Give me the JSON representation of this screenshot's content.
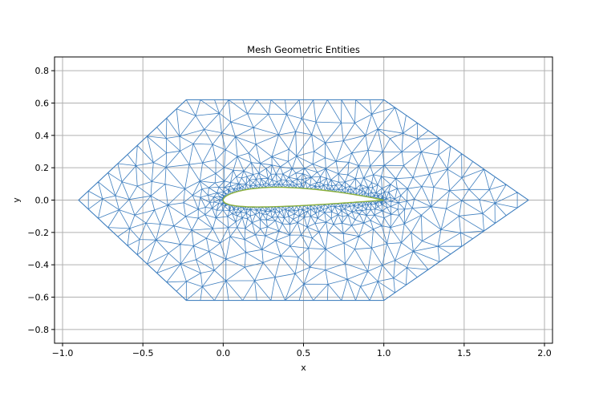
{
  "chart_data": {
    "type": "mesh",
    "title": "Mesh Geometric Entities",
    "xlabel": "x",
    "ylabel": "y",
    "xlim": [
      -1.05,
      2.05
    ],
    "ylim": [
      -0.885,
      0.885
    ],
    "grid": true,
    "x_ticks": [
      {
        "value": -1.0,
        "label": "−1.0"
      },
      {
        "value": -0.5,
        "label": "−0.5"
      },
      {
        "value": 0.0,
        "label": "0.0"
      },
      {
        "value": 0.5,
        "label": "0.5"
      },
      {
        "value": 1.0,
        "label": "1.0"
      },
      {
        "value": 1.5,
        "label": "1.5"
      },
      {
        "value": 2.0,
        "label": "2.0"
      }
    ],
    "y_ticks": [
      {
        "value": 0.8,
        "label": "0.8"
      },
      {
        "value": 0.6,
        "label": "0.6"
      },
      {
        "value": 0.4,
        "label": "0.4"
      },
      {
        "value": 0.2,
        "label": "0.2"
      },
      {
        "value": 0.0,
        "label": "0.0"
      },
      {
        "value": -0.2,
        "label": "−0.2"
      },
      {
        "value": -0.4,
        "label": "−0.4"
      },
      {
        "value": -0.6,
        "label": "−0.6"
      },
      {
        "value": -0.8,
        "label": "−0.8"
      }
    ],
    "outer_boundary": [
      [
        -0.9,
        0.0
      ],
      [
        -0.23,
        0.62
      ],
      [
        1.0,
        0.62
      ],
      [
        1.9,
        0.0
      ],
      [
        1.0,
        -0.62
      ],
      [
        -0.23,
        -0.62
      ]
    ],
    "airfoil": {
      "chord_start": [
        0.0,
        0.0
      ],
      "chord_end": [
        1.0,
        0.0
      ],
      "max_thickness": 0.12,
      "max_camber": 0.02
    },
    "colors": {
      "mesh": "#3f7fbf",
      "airfoil_fill": "#ffffff",
      "airfoil_edge": "#8db13c",
      "grid": "#b0b0b0"
    }
  }
}
